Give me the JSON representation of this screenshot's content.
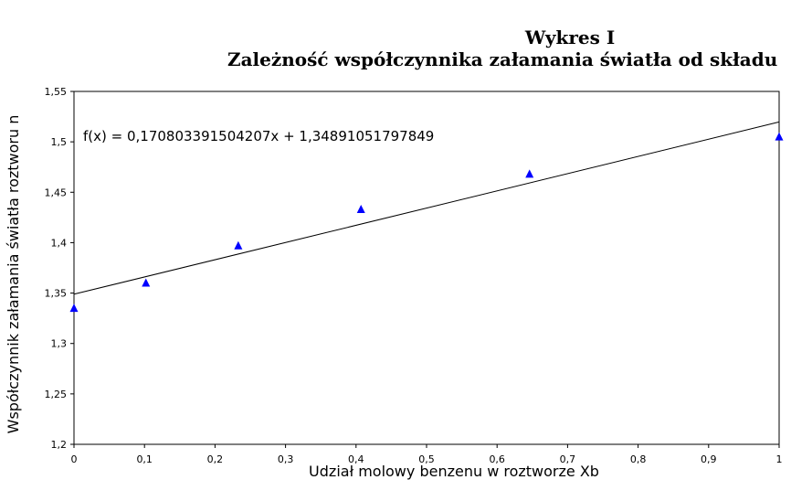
{
  "chart_data": {
    "type": "scatter",
    "title": "Wykres I",
    "subtitle": "Zależność współczynnika załamania światła od składu",
    "xlabel": "Udział molowy benzenu w roztworze Xb",
    "ylabel": "Współczynnik załamania światła roztworu n",
    "xlim": [
      0,
      1
    ],
    "ylim": [
      1.2,
      1.55
    ],
    "x_ticks": [
      "0",
      "0,1",
      "0,2",
      "0,3",
      "0,4",
      "0,5",
      "0,6",
      "0,7",
      "0,8",
      "0,9",
      "1"
    ],
    "y_ticks": [
      "1,2",
      "1,25",
      "1,3",
      "1,35",
      "1,4",
      "1,45",
      "1,5",
      "1,55"
    ],
    "grid": false,
    "series": [
      {
        "marker": "triangle",
        "color": "#0000ff",
        "x": [
          0,
          0.102,
          0.233,
          0.407,
          0.646,
          1.0
        ],
        "y": [
          1.335,
          1.36,
          1.397,
          1.433,
          1.468,
          1.505
        ]
      }
    ],
    "trendline": {
      "slope": 0.170803391504207,
      "intercept": 1.34891051797849,
      "color": "#000000",
      "equation_text": "f(x) = 0,170803391504207x + 1,34891051797849"
    }
  }
}
